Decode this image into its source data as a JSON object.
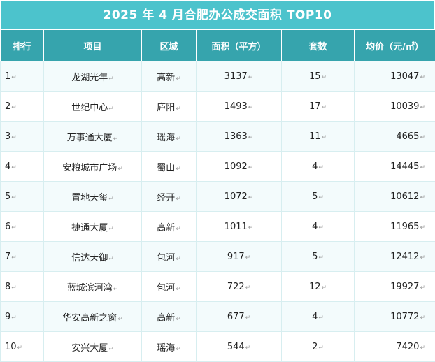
{
  "title": "2025 年 4 月合肥办公成交面积 TOP10",
  "mark": "↵",
  "headers": [
    "排行",
    "项目",
    "区域",
    "面积（平方）",
    "套数",
    "均价（元/㎡）"
  ],
  "rows": [
    {
      "rank": "1",
      "project": "龙湖光年",
      "district": "高新",
      "area": "3137",
      "units": "15",
      "price": "13047"
    },
    {
      "rank": "2",
      "project": "世纪中心",
      "district": "庐阳",
      "area": "1493",
      "units": "17",
      "price": "10039"
    },
    {
      "rank": "3",
      "project": "万事通大厦",
      "district": "瑶海",
      "area": "1363",
      "units": "11",
      "price": "4665"
    },
    {
      "rank": "4",
      "project": "安粮城市广场",
      "district": "蜀山",
      "area": "1092",
      "units": "4",
      "price": "14445"
    },
    {
      "rank": "5",
      "project": "置地天玺",
      "district": "经开",
      "area": "1072",
      "units": "5",
      "price": "10612"
    },
    {
      "rank": "6",
      "project": "捷通大厦",
      "district": "高新",
      "area": "1011",
      "units": "4",
      "price": "11965"
    },
    {
      "rank": "7",
      "project": "信达天御",
      "district": "包河",
      "area": "917",
      "units": "5",
      "price": "12412"
    },
    {
      "rank": "8",
      "project": "蓝城滨河湾",
      "district": "包河",
      "area": "722",
      "units": "12",
      "price": "19927"
    },
    {
      "rank": "9",
      "project": "华安高新之窗",
      "district": "高新",
      "area": "677",
      "units": "4",
      "price": "10772"
    },
    {
      "rank": "10",
      "project": "安兴大厦",
      "district": "瑶海",
      "area": "544",
      "units": "2",
      "price": "7420"
    }
  ]
}
